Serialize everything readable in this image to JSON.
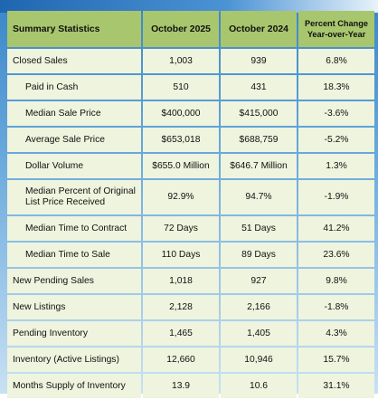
{
  "table": {
    "header": {
      "title": "Summary Statistics",
      "col1": "October 2025",
      "col2": "October 2024",
      "col3": "Percent Change Year-over-Year"
    },
    "rows": [
      {
        "label": "Closed Sales",
        "v2025": "1,003",
        "v2024": "939",
        "change": "6.8%"
      },
      {
        "label": "Paid in Cash",
        "v2025": "510",
        "v2024": "431",
        "change": "18.3%"
      },
      {
        "label": "Median Sale Price",
        "v2025": "$400,000",
        "v2024": "$415,000",
        "change": "-3.6%"
      },
      {
        "label": "Average Sale Price",
        "v2025": "$653,018",
        "v2024": "$688,759",
        "change": "-5.2%"
      },
      {
        "label": "Dollar Volume",
        "v2025": "$655.0 Million",
        "v2024": "$646.7 Million",
        "change": "1.3%"
      },
      {
        "label": "Median Percent of Original List Price Received",
        "v2025": "92.9%",
        "v2024": "94.7%",
        "change": "-1.9%"
      },
      {
        "label": "Median Time to Contract",
        "v2025": "72 Days",
        "v2024": "51 Days",
        "change": "41.2%"
      },
      {
        "label": "Median Time to Sale",
        "v2025": "110 Days",
        "v2024": "89 Days",
        "change": "23.6%"
      },
      {
        "label": "New Pending Sales",
        "v2025": "1,018",
        "v2024": "927",
        "change": "9.8%"
      },
      {
        "label": "New Listings",
        "v2025": "2,128",
        "v2024": "2,166",
        "change": "-1.8%"
      },
      {
        "label": "Pending Inventory",
        "v2025": "1,465",
        "v2024": "1,405",
        "change": "4.3%"
      },
      {
        "label": "Inventory (Active Listings)",
        "v2025": "12,660",
        "v2024": "10,946",
        "change": "15.7%"
      },
      {
        "label": "Months Supply of Inventory",
        "v2025": "13.9",
        "v2024": "10.6",
        "change": "31.1%"
      }
    ]
  },
  "colors": {
    "header_bg": "#a8c66d",
    "cell_bg": "#eef4dd",
    "background_blue": "#3a86c8"
  }
}
